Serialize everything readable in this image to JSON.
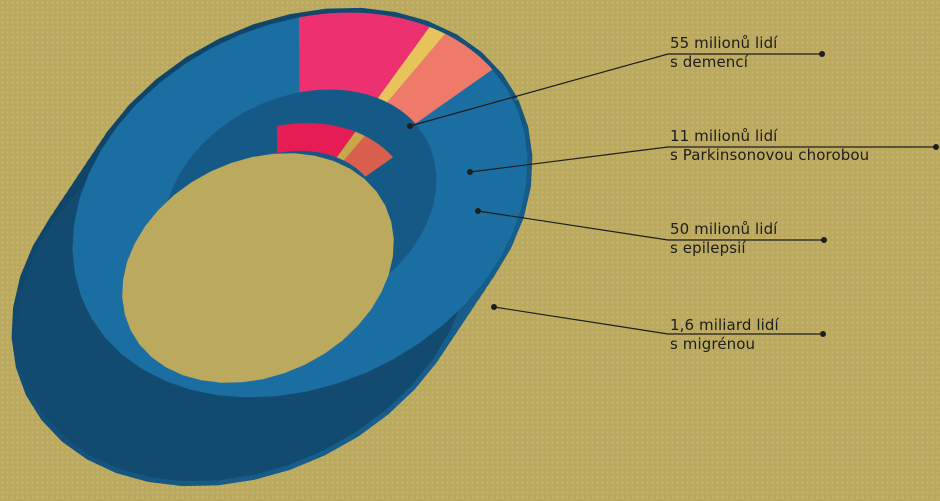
{
  "chart_data": {
    "type": "pie",
    "title": "",
    "segments": [
      {
        "key": "migraine",
        "line1": "1,6 miliard lidí",
        "line2": "s migrénou",
        "value": 1600,
        "color": "#1b6ea1",
        "side": "#134f78"
      },
      {
        "key": "dementia",
        "line1": "55 milionů lidí",
        "line2": "s demencí",
        "value": 55,
        "color": "#ec3070",
        "side": "#e61c55"
      },
      {
        "key": "parkinson",
        "line1": "11 milionů lidí",
        "line2": "s Parkinsonovou chorobou",
        "value": 11,
        "color": "#e8c25a",
        "side": "#c9a64a"
      },
      {
        "key": "epilepsy",
        "line1": "50 milionů lidí",
        "line2": "s epilepsií",
        "value": 50,
        "color": "#f07a6a",
        "side": "#d9604e"
      }
    ],
    "value_unit": "milionů lidí",
    "style": "3d-ring"
  }
}
